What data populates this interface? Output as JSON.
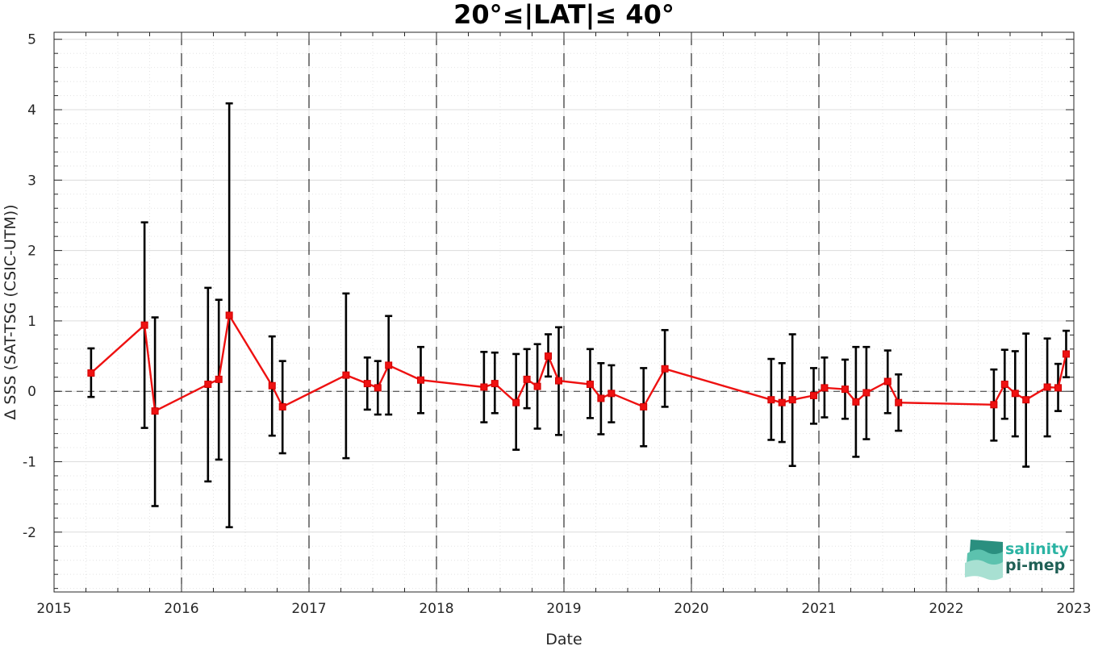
{
  "chart_data": {
    "type": "line",
    "title": "20°≤|LAT|≤ 40°",
    "xlabel": "Date",
    "ylabel": "Δ SSS (SAT-TSG (CSIC-UTM))",
    "xlim": [
      "2015-01-01",
      "2023-01-01"
    ],
    "ylim": [
      -2.85,
      5.1
    ],
    "x_ticks": [
      "2015",
      "2016",
      "2017",
      "2018",
      "2019",
      "2020",
      "2021",
      "2022",
      "2023"
    ],
    "y_ticks": [
      -2,
      -1,
      0,
      1,
      2,
      3,
      4,
      5
    ],
    "y_tick_labels": [
      "-2",
      "-1",
      "0",
      "1",
      "2",
      "3",
      "4",
      "5"
    ],
    "grid": true,
    "minor_grid": true,
    "year_dividers": "dashed vertical lines at each year",
    "zero_line": "dashed horizontal line at 0",
    "series": [
      {
        "color": "#ee1111",
        "marker": "square",
        "points": [
          {
            "date": "2015-04-17",
            "mean": 0.26,
            "low": -0.08,
            "high": 0.61
          },
          {
            "date": "2015-09-17",
            "mean": 0.94,
            "low": -0.52,
            "high": 2.4
          },
          {
            "date": "2015-10-17",
            "mean": -0.28,
            "low": -1.63,
            "high": 1.05
          },
          {
            "date": "2016-03-17",
            "mean": 0.1,
            "low": -1.28,
            "high": 1.47
          },
          {
            "date": "2016-04-17",
            "mean": 0.17,
            "low": -0.97,
            "high": 1.3
          },
          {
            "date": "2016-05-17",
            "mean": 1.08,
            "low": -1.93,
            "high": 4.09
          },
          {
            "date": "2016-09-17",
            "mean": 0.08,
            "low": -0.63,
            "high": 0.78
          },
          {
            "date": "2016-10-17",
            "mean": -0.22,
            "low": -0.88,
            "high": 0.43
          },
          {
            "date": "2017-04-17",
            "mean": 0.23,
            "low": -0.95,
            "high": 1.39
          },
          {
            "date": "2017-06-17",
            "mean": 0.11,
            "low": -0.26,
            "high": 0.48
          },
          {
            "date": "2017-07-17",
            "mean": 0.05,
            "low": -0.33,
            "high": 0.43
          },
          {
            "date": "2017-08-17",
            "mean": 0.37,
            "low": -0.33,
            "high": 1.07
          },
          {
            "date": "2017-11-17",
            "mean": 0.16,
            "low": -0.31,
            "high": 0.63
          },
          {
            "date": "2018-05-17",
            "mean": 0.06,
            "low": -0.44,
            "high": 0.56
          },
          {
            "date": "2018-06-17",
            "mean": 0.11,
            "low": -0.31,
            "high": 0.55
          },
          {
            "date": "2018-08-17",
            "mean": -0.16,
            "low": -0.83,
            "high": 0.53
          },
          {
            "date": "2018-09-17",
            "mean": 0.17,
            "low": -0.24,
            "high": 0.6
          },
          {
            "date": "2018-10-17",
            "mean": 0.07,
            "low": -0.53,
            "high": 0.67
          },
          {
            "date": "2018-11-17",
            "mean": 0.5,
            "low": 0.21,
            "high": 0.81
          },
          {
            "date": "2018-12-17",
            "mean": 0.15,
            "low": -0.62,
            "high": 0.91
          },
          {
            "date": "2019-03-17",
            "mean": 0.1,
            "low": -0.38,
            "high": 0.6
          },
          {
            "date": "2019-04-17",
            "mean": -0.1,
            "low": -0.61,
            "high": 0.4
          },
          {
            "date": "2019-05-17",
            "mean": -0.03,
            "low": -0.44,
            "high": 0.37
          },
          {
            "date": "2019-08-17",
            "mean": -0.22,
            "low": -0.78,
            "high": 0.33
          },
          {
            "date": "2019-10-17",
            "mean": 0.32,
            "low": -0.22,
            "high": 0.87
          },
          {
            "date": "2020-08-17",
            "mean": -0.12,
            "low": -0.69,
            "high": 0.46
          },
          {
            "date": "2020-09-17",
            "mean": -0.16,
            "low": -0.72,
            "high": 0.4
          },
          {
            "date": "2020-10-17",
            "mean": -0.12,
            "low": -1.06,
            "high": 0.81
          },
          {
            "date": "2020-12-17",
            "mean": -0.06,
            "low": -0.46,
            "high": 0.33
          },
          {
            "date": "2021-01-17",
            "mean": 0.05,
            "low": -0.37,
            "high": 0.48
          },
          {
            "date": "2021-03-17",
            "mean": 0.03,
            "low": -0.39,
            "high": 0.45
          },
          {
            "date": "2021-04-17",
            "mean": -0.15,
            "low": -0.93,
            "high": 0.63
          },
          {
            "date": "2021-05-17",
            "mean": -0.02,
            "low": -0.68,
            "high": 0.63
          },
          {
            "date": "2021-07-17",
            "mean": 0.14,
            "low": -0.31,
            "high": 0.58
          },
          {
            "date": "2021-08-17",
            "mean": -0.16,
            "low": -0.56,
            "high": 0.24
          },
          {
            "date": "2022-05-17",
            "mean": -0.19,
            "low": -0.7,
            "high": 0.31
          },
          {
            "date": "2022-06-17",
            "mean": 0.1,
            "low": -0.39,
            "high": 0.59
          },
          {
            "date": "2022-07-17",
            "mean": -0.03,
            "low": -0.64,
            "high": 0.57
          },
          {
            "date": "2022-08-17",
            "mean": -0.12,
            "low": -1.07,
            "high": 0.82
          },
          {
            "date": "2022-10-17",
            "mean": 0.06,
            "low": -0.64,
            "high": 0.75
          },
          {
            "date": "2022-11-17",
            "mean": 0.05,
            "low": -0.28,
            "high": 0.39
          },
          {
            "date": "2022-12-10",
            "mean": 0.53,
            "low": 0.2,
            "high": 0.86
          }
        ]
      }
    ]
  },
  "logo": {
    "line1": "salinity",
    "line2": "pi-mep",
    "color1": "#2ab3a3",
    "color2": "#1f5f55"
  },
  "colors": {
    "series_line": "#ee1111",
    "error_bar": "#000000",
    "divider": "#000000",
    "grid_major": "#dcdcdc",
    "grid_minor": "#e4e4e4"
  }
}
